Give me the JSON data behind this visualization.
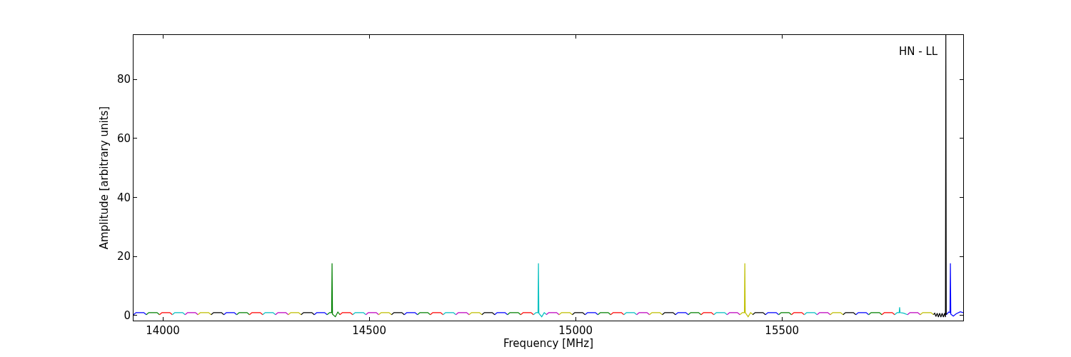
{
  "chart_data": {
    "type": "line",
    "xlabel": "Frequency [MHz]",
    "ylabel": "Amplitude [arbitrary units]",
    "annotations": [
      "HN - LL"
    ],
    "xlim": [
      13929,
      15939
    ],
    "ylim": [
      -1.7,
      95
    ],
    "xticks": [
      14000,
      14500,
      15000,
      15500
    ],
    "yticks": [
      0,
      20,
      40,
      60,
      80
    ],
    "marker": "none",
    "line_style": "solid",
    "series": [
      {
        "color": "#0000ff",
        "x": [
          13929,
          13935,
          13954,
          13960,
          null,
          14148,
          14154,
          14173,
          14179,
          null,
          14367,
          14373,
          14392,
          14398,
          null,
          14585,
          14591,
          14611,
          14617,
          null,
          14804,
          14810,
          14829,
          14835,
          null,
          15023,
          15029,
          15048,
          15054,
          null,
          15242,
          15248,
          15267,
          15273,
          null,
          15460,
          15466,
          15486,
          15492,
          null,
          15679,
          15685,
          15704,
          15710,
          null,
          15898,
          15904,
          15907,
          15908,
          15909,
          15915,
          15922,
          15932,
          15939
        ],
        "values": [
          0.3,
          1,
          1,
          0.3,
          null,
          0.3,
          1,
          1,
          0.3,
          null,
          0.3,
          1,
          1,
          0.3,
          null,
          0.3,
          1,
          1,
          0.3,
          null,
          0.3,
          1,
          1,
          0.3,
          null,
          0.3,
          1,
          1,
          0.3,
          null,
          0.3,
          1,
          1,
          0.3,
          null,
          0.3,
          1,
          1,
          0.3,
          null,
          0.3,
          1,
          1,
          0.3,
          null,
          0.3,
          1.2,
          1.0,
          17.7,
          0.5,
          -0.2,
          0.6,
          1.3,
          1.0
        ]
      },
      {
        "color": "#008000",
        "x": [
          13960,
          13966,
          13986,
          13992,
          null,
          14179,
          14185,
          14204,
          14210,
          null,
          14398,
          14404,
          14409,
          14410,
          14411,
          14418,
          14424,
          14429,
          null,
          14617,
          14623,
          14642,
          14648,
          null,
          14835,
          14841,
          14861,
          14867,
          null,
          15054,
          15060,
          15079,
          15085,
          null,
          15273,
          15279,
          15298,
          15304,
          null,
          15492,
          15498,
          15517,
          15523,
          null,
          15710,
          15716,
          15736,
          15742
        ],
        "values": [
          0.3,
          1,
          1,
          0.3,
          null,
          0.3,
          1,
          1,
          0.3,
          null,
          0.3,
          1,
          1,
          17.7,
          0.5,
          -0.4,
          1.2,
          0.3,
          null,
          0.3,
          1,
          1,
          0.3,
          null,
          0.3,
          1,
          1,
          0.3,
          null,
          0.3,
          1,
          1,
          0.3,
          null,
          0.3,
          1,
          1,
          0.3,
          null,
          0.3,
          1,
          1,
          0.3,
          null,
          0.3,
          1,
          1,
          0.3
        ]
      },
      {
        "color": "#ff0000",
        "x": [
          13992,
          13998,
          14017,
          14023,
          null,
          14210,
          14216,
          14236,
          14242,
          null,
          14429,
          14435,
          14454,
          14460,
          null,
          14648,
          14654,
          14673,
          14679,
          null,
          14867,
          14873,
          14892,
          14898,
          null,
          15085,
          15091,
          15111,
          15117,
          null,
          15304,
          15310,
          15329,
          15335,
          null,
          15523,
          15529,
          15548,
          15554,
          null,
          15742,
          15748,
          15767,
          15773
        ],
        "values": [
          0.3,
          1,
          1,
          0.3,
          null,
          0.3,
          1,
          1,
          0.3,
          null,
          0.3,
          1,
          1,
          0.3,
          null,
          0.3,
          1,
          1,
          0.3,
          null,
          0.3,
          1,
          1,
          0.3,
          null,
          0.3,
          1,
          1,
          0.3,
          null,
          0.3,
          1,
          1,
          0.3,
          null,
          0.3,
          1,
          1,
          0.3,
          null,
          0.3,
          1,
          1,
          0.3
        ]
      },
      {
        "color": "#00bfbf",
        "x": [
          14023,
          14029,
          14048,
          14054,
          null,
          14242,
          14248,
          14267,
          14273,
          null,
          14460,
          14466,
          14486,
          14492,
          null,
          14679,
          14685,
          14704,
          14710,
          null,
          14898,
          14904,
          14909,
          14910,
          14911,
          14918,
          14924,
          14929,
          null,
          15117,
          15123,
          15142,
          15148,
          null,
          15335,
          15341,
          15361,
          15367,
          null,
          15554,
          15560,
          15579,
          15585,
          null,
          15773,
          15779,
          15784,
          15785,
          15786,
          15795,
          15804
        ],
        "values": [
          0.3,
          1,
          1,
          0.3,
          null,
          0.3,
          1,
          1,
          0.3,
          null,
          0.3,
          1,
          1,
          0.3,
          null,
          0.3,
          1,
          1,
          0.3,
          null,
          0.3,
          1,
          1,
          17.7,
          0.8,
          -0.4,
          1.0,
          0.4,
          null,
          0.3,
          1,
          1,
          0.3,
          null,
          0.3,
          1,
          1,
          0.3,
          null,
          0.3,
          1,
          1,
          0.3,
          null,
          0.3,
          1,
          1,
          2.8,
          1,
          0.8,
          0.3
        ]
      },
      {
        "color": "#bf00bf",
        "x": [
          14054,
          14060,
          14079,
          14085,
          null,
          14273,
          14279,
          14298,
          14304,
          null,
          14492,
          14498,
          14517,
          14523,
          null,
          14710,
          14716,
          14736,
          14742,
          null,
          14929,
          14935,
          14954,
          14960,
          null,
          15148,
          15154,
          15173,
          15179,
          null,
          15367,
          15373,
          15392,
          15398,
          null,
          15585,
          15591,
          15611,
          15617,
          null,
          15804,
          15810,
          15829,
          15835
        ],
        "values": [
          0.3,
          1,
          1,
          0.3,
          null,
          0.3,
          1,
          1,
          0.3,
          null,
          0.3,
          1,
          1,
          0.3,
          null,
          0.3,
          1,
          1,
          0.3,
          null,
          0.3,
          1,
          1,
          0.3,
          null,
          0.3,
          1,
          1,
          0.3,
          null,
          0.3,
          1,
          1,
          0.3,
          null,
          0.3,
          1,
          1,
          0.3,
          null,
          0.3,
          1,
          1,
          0.3
        ]
      },
      {
        "color": "#bfbf00",
        "x": [
          14085,
          14091,
          14111,
          14117,
          null,
          14304,
          14310,
          14329,
          14335,
          null,
          14523,
          14529,
          14548,
          14554,
          null,
          14742,
          14748,
          14767,
          14773,
          null,
          14960,
          14966,
          14986,
          14992,
          null,
          15179,
          15185,
          15204,
          15210,
          null,
          15398,
          15404,
          15409,
          15410,
          15411,
          15418,
          15424,
          15429,
          null,
          15617,
          15623,
          15642,
          15648,
          null,
          15835,
          15841,
          15861,
          15867
        ],
        "values": [
          0.3,
          1,
          1,
          0.3,
          null,
          0.3,
          1,
          1,
          0.3,
          null,
          0.3,
          1,
          1,
          0.3,
          null,
          0.3,
          1,
          1,
          0.3,
          null,
          0.3,
          1,
          1,
          0.3,
          null,
          0.3,
          1,
          1,
          0.3,
          null,
          0.3,
          1,
          1,
          17.7,
          1.0,
          -0.4,
          1.0,
          0.4,
          null,
          0.3,
          1,
          1,
          0.3,
          null,
          0.3,
          1,
          1,
          0.3
        ]
      },
      {
        "color": "#000000",
        "x": [
          14117,
          14123,
          14142,
          14148,
          null,
          14335,
          14341,
          14361,
          14367,
          null,
          14554,
          14560,
          14579,
          14585,
          null,
          14773,
          14779,
          14798,
          14804,
          null,
          14992,
          14998,
          15017,
          15023,
          null,
          15210,
          15216,
          15236,
          15242,
          null,
          15429,
          15435,
          15454,
          15460,
          null,
          15648,
          15654,
          15673,
          15679,
          null,
          15867,
          15870,
          15873,
          15876,
          15879,
          15882,
          15885,
          15888,
          15891,
          15894,
          15896,
          15897,
          15898
        ],
        "values": [
          0.3,
          1,
          1,
          0.3,
          null,
          0.3,
          1,
          1,
          0.3,
          null,
          0.3,
          1,
          1,
          0.3,
          null,
          0.3,
          1,
          1,
          0.3,
          null,
          0.3,
          1,
          1,
          0.3,
          null,
          0.3,
          1,
          1,
          0.3,
          null,
          0.3,
          1,
          1,
          0.3,
          null,
          0.3,
          1,
          1,
          0.3,
          null,
          0.3,
          0.8,
          -0.3,
          0.8,
          -0.5,
          0.8,
          -0.5,
          0.8,
          -0.5,
          0.8,
          -0.5,
          95,
          0.3
        ]
      }
    ]
  }
}
